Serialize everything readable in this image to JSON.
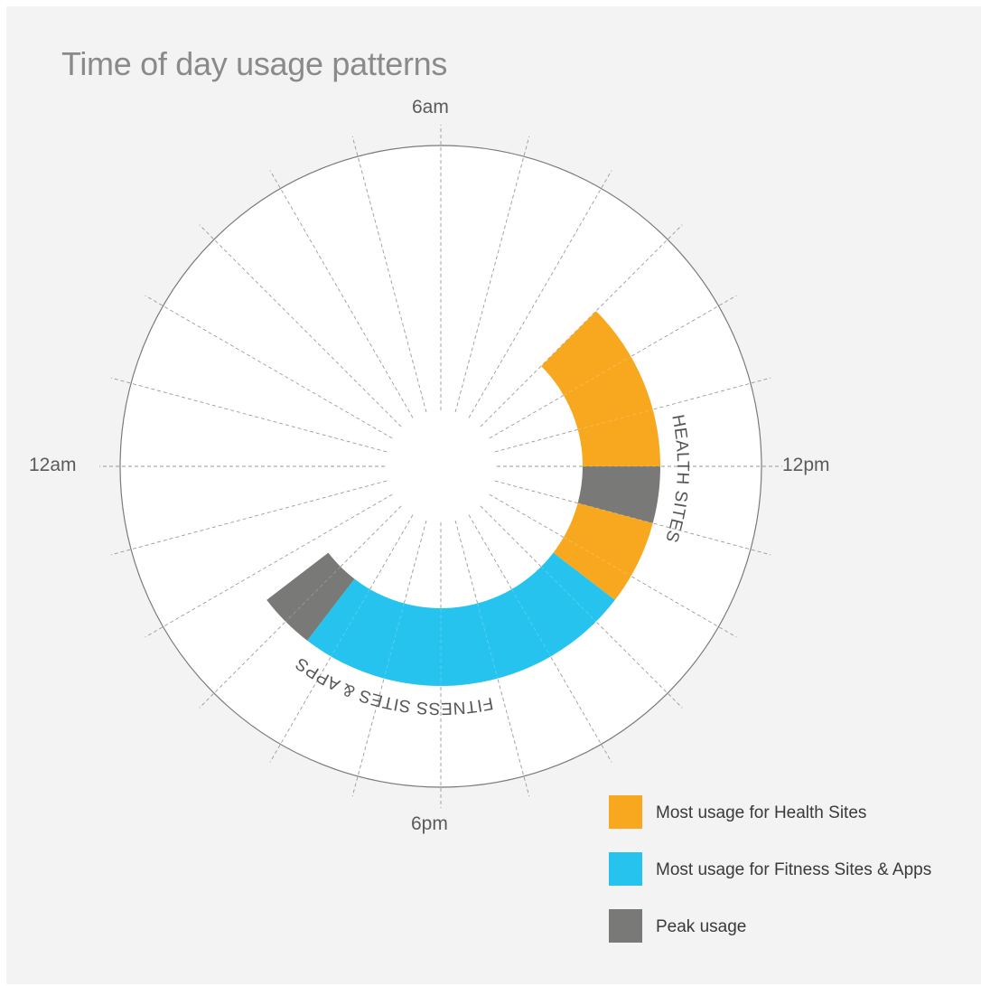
{
  "title": "Time of day usage patterns",
  "hour_labels": {
    "top": "6am",
    "left": "12am",
    "right": "12pm",
    "bottom": "6pm"
  },
  "colors": {
    "health": "#f7a81e",
    "fitness": "#26c3ef",
    "peak": "#797978",
    "ring_fill": "#ffffff",
    "ring_stroke": "#7a7a7a",
    "grid": "#9a9a9a",
    "background": "#f2f3f2"
  },
  "chart_data": {
    "type": "radial-bar",
    "title": "Time of day usage patterns",
    "hours_per_rotation": 24,
    "divisions": 24,
    "axis_labels": [
      "6am",
      "12pm",
      "6pm",
      "12am"
    ],
    "series": [
      {
        "name": "Health Sites",
        "label": "HEALTH SITES",
        "start_hour": 9,
        "end_hour": 14.5,
        "peak": [
          12,
          13
        ],
        "color": "#f7a81e"
      },
      {
        "name": "Fitness Sites & Apps",
        "label": "FITNESS SITES & APPS",
        "start_hour": 14.5,
        "end_hour": 21.5,
        "peak": [
          20.5,
          21.5
        ],
        "color": "#26c3ef"
      }
    ],
    "peak_color": "#797978"
  },
  "legend": [
    {
      "label": "Most usage for Health Sites",
      "color": "#f7a81e"
    },
    {
      "label": "Most usage for Fitness Sites & Apps",
      "color": "#26c3ef"
    },
    {
      "label": "Peak usage",
      "color": "#797978"
    }
  ]
}
